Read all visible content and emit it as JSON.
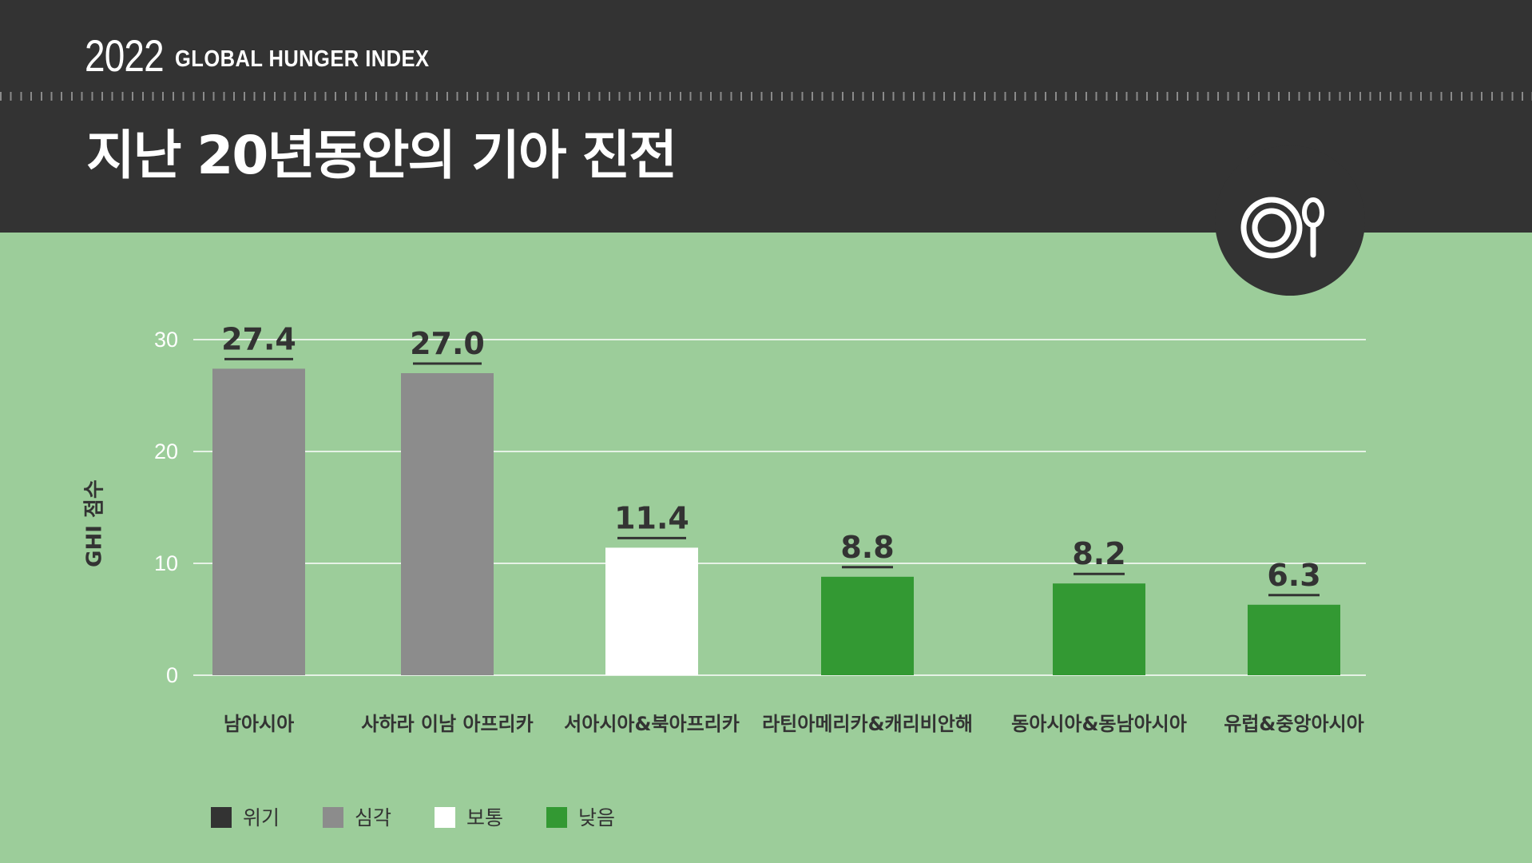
{
  "header": {
    "year": "2022",
    "index_name": "GLOBAL HUNGER INDEX",
    "title": "지난 20년동안의 기아 진전"
  },
  "badge": {
    "icon": "plate-spoon-icon"
  },
  "colors": {
    "header": "#333333",
    "background": "#9ccd9a",
    "serious": "#8c8c8c",
    "moderate": "#ffffff",
    "low": "#339933",
    "alarming": "#333333"
  },
  "chart_data": {
    "type": "bar",
    "ylabel": "GHI 점수",
    "ylim": [
      0,
      30
    ],
    "yticks": [
      0,
      10,
      20,
      30
    ],
    "grid": true,
    "categories": [
      "남아시아",
      "사하라 이남 아프리카",
      "서아시아&북아프리카",
      "라틴아메리카&캐리비안해",
      "동아시아&동남아시아",
      "유럽&중앙아시아"
    ],
    "values": [
      27.4,
      27.0,
      11.4,
      8.8,
      8.2,
      6.3
    ],
    "value_labels": [
      "27.4",
      "27.0",
      "11.4",
      "8.8",
      "8.2",
      "6.3"
    ],
    "severity": [
      "serious",
      "serious",
      "moderate",
      "low",
      "low",
      "low"
    ],
    "legend": {
      "placement": "bottom-left",
      "entries": [
        {
          "label": "위기",
          "color": "#333333"
        },
        {
          "label": "심각",
          "color": "#8c8c8c"
        },
        {
          "label": "보통",
          "color": "#ffffff"
        },
        {
          "label": "낮음",
          "color": "#339933"
        }
      ]
    }
  }
}
